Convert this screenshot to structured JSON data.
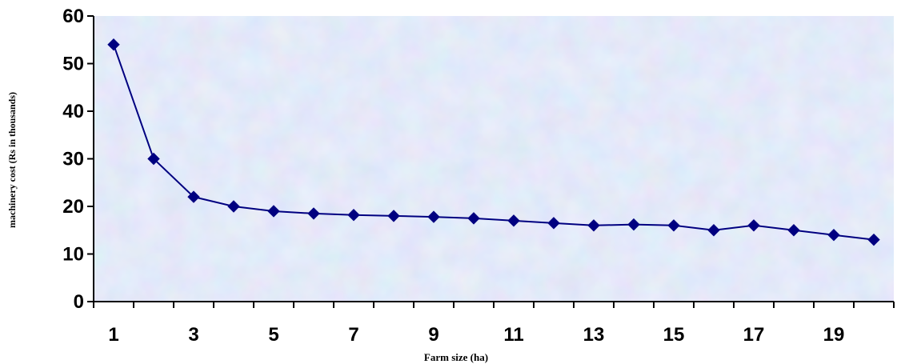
{
  "chart_data": {
    "type": "line",
    "title": "",
    "xlabel": "Farm size (ha)",
    "ylabel": "machinery cost (Rs in thousands)",
    "x": [
      1,
      2,
      3,
      4,
      5,
      6,
      7,
      8,
      9,
      10,
      11,
      12,
      13,
      14,
      15,
      16,
      17,
      18,
      19,
      20
    ],
    "x_tick_labels": [
      "1",
      "3",
      "5",
      "7",
      "9",
      "11",
      "13",
      "15",
      "17",
      "19"
    ],
    "y_ticks": [
      0,
      10,
      20,
      30,
      40,
      50,
      60
    ],
    "ylim": [
      0,
      60
    ],
    "grid": false,
    "legend": "none",
    "series": [
      {
        "values": [
          54,
          30,
          22,
          20,
          19,
          18.5,
          18.2,
          18,
          17.8,
          17.5,
          17,
          16.5,
          16,
          16.2,
          16,
          15,
          16,
          15,
          14,
          13
        ],
        "color": "#000080"
      }
    ],
    "colors": {
      "line": "#000080",
      "marker": "#000080",
      "plot_background": "#c9dcf2",
      "axis": "#000000"
    }
  }
}
